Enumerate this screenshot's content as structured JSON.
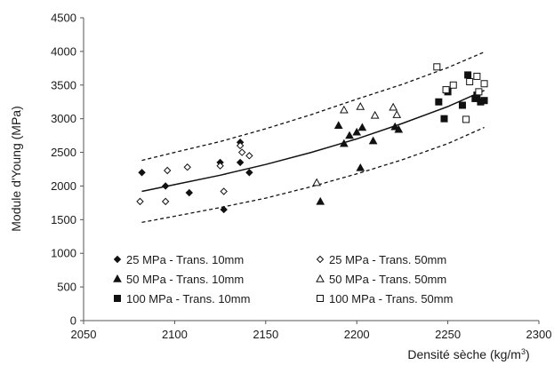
{
  "chart_data": {
    "type": "scatter",
    "title": "",
    "xlabel": "Densité sèche (kg/m",
    "xlabel_sup": "3",
    "xlabel_close": ")",
    "ylabel": "Module d'Young (MPa)",
    "xlim": [
      2050,
      2300
    ],
    "ylim": [
      0,
      4500
    ],
    "xticks": [
      2050,
      2100,
      2150,
      2200,
      2250,
      2300
    ],
    "yticks": [
      0,
      500,
      1000,
      1500,
      2000,
      2500,
      3000,
      3500,
      4000,
      4500
    ],
    "grid": false,
    "legend_position": "bottom-left",
    "colors": {
      "marker": "#111111",
      "curve": "#111111",
      "axis": "#555555"
    },
    "series": [
      {
        "name": "25 MPa - Trans. 10mm",
        "marker": "diamond",
        "filled": true,
        "points": [
          [
            2082,
            2200
          ],
          [
            2095,
            2000
          ],
          [
            2108,
            1900
          ],
          [
            2125,
            2350
          ],
          [
            2127,
            1650
          ],
          [
            2136,
            2650
          ],
          [
            2136,
            2350
          ],
          [
            2141,
            2200
          ]
        ]
      },
      {
        "name": "25 MPa - Trans. 50mm",
        "marker": "diamond",
        "filled": false,
        "points": [
          [
            2081,
            1770
          ],
          [
            2095,
            1770
          ],
          [
            2096,
            2230
          ],
          [
            2107,
            2280
          ],
          [
            2125,
            2300
          ],
          [
            2127,
            1920
          ],
          [
            2136,
            2600
          ],
          [
            2137,
            2500
          ],
          [
            2141,
            2450
          ]
        ]
      },
      {
        "name": "50 MPa - Trans. 10mm",
        "marker": "triangle",
        "filled": true,
        "points": [
          [
            2180,
            1770
          ],
          [
            2190,
            2900
          ],
          [
            2193,
            2630
          ],
          [
            2196,
            2750
          ],
          [
            2200,
            2800
          ],
          [
            2202,
            2270
          ],
          [
            2203,
            2870
          ],
          [
            2209,
            2670
          ],
          [
            2221,
            2880
          ],
          [
            2223,
            2840
          ]
        ]
      },
      {
        "name": "50 MPa - Trans. 50mm",
        "marker": "triangle",
        "filled": false,
        "points": [
          [
            2178,
            2050
          ],
          [
            2193,
            3130
          ],
          [
            2202,
            3180
          ],
          [
            2210,
            3050
          ],
          [
            2220,
            3170
          ],
          [
            2222,
            3060
          ]
        ]
      },
      {
        "name": "100 MPa - Trans. 10mm",
        "marker": "square",
        "filled": true,
        "points": [
          [
            2245,
            3250
          ],
          [
            2248,
            3000
          ],
          [
            2250,
            3400
          ],
          [
            2258,
            3200
          ],
          [
            2261,
            3650
          ],
          [
            2265,
            3300
          ],
          [
            2266,
            3350
          ],
          [
            2268,
            3250
          ],
          [
            2270,
            3270
          ]
        ]
      },
      {
        "name": "100 MPa - Trans. 50mm",
        "marker": "square",
        "filled": false,
        "points": [
          [
            2244,
            3770
          ],
          [
            2249,
            3430
          ],
          [
            2253,
            3500
          ],
          [
            2260,
            2990
          ],
          [
            2262,
            3550
          ],
          [
            2266,
            3630
          ],
          [
            2270,
            3520
          ],
          [
            2267,
            3400
          ]
        ]
      }
    ],
    "fit": {
      "style": "solid",
      "points": [
        [
          2082,
          1920
        ],
        [
          2100,
          2020
        ],
        [
          2125,
          2160
        ],
        [
          2150,
          2320
        ],
        [
          2175,
          2500
        ],
        [
          2200,
          2700
        ],
        [
          2225,
          2930
        ],
        [
          2250,
          3180
        ],
        [
          2270,
          3420
        ]
      ]
    },
    "upper_bound": {
      "style": "dashed",
      "points": [
        [
          2082,
          2380
        ],
        [
          2100,
          2500
        ],
        [
          2125,
          2660
        ],
        [
          2150,
          2850
        ],
        [
          2175,
          3060
        ],
        [
          2200,
          3290
        ],
        [
          2225,
          3510
        ],
        [
          2250,
          3760
        ],
        [
          2270,
          3990
        ]
      ]
    },
    "lower_bound": {
      "style": "dashed",
      "points": [
        [
          2082,
          1460
        ],
        [
          2100,
          1550
        ],
        [
          2125,
          1680
        ],
        [
          2150,
          1820
        ],
        [
          2175,
          1990
        ],
        [
          2200,
          2180
        ],
        [
          2225,
          2390
        ],
        [
          2250,
          2630
        ],
        [
          2270,
          2870
        ]
      ]
    }
  }
}
